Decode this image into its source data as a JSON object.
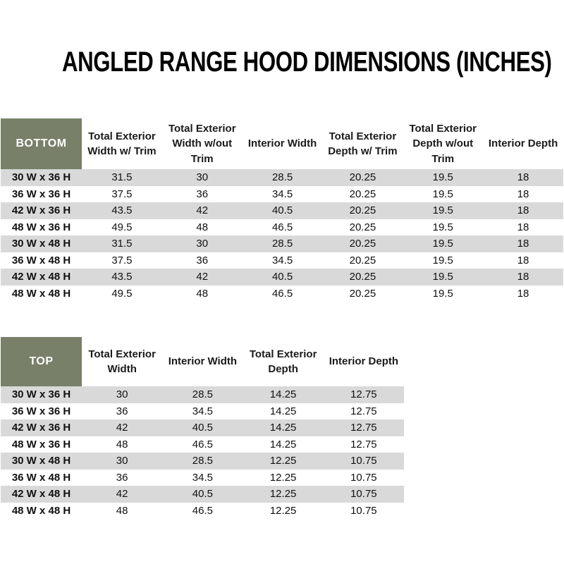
{
  "title": "ANGLED RANGE HOOD DIMENSIONS (INCHES)",
  "colors": {
    "corner_cell_green": "#78806a",
    "striped_row_gray": "#d9d9d9",
    "text_black": "#111111",
    "corner_text_white": "#ffffff"
  },
  "tables": [
    {
      "name": "bottom",
      "corner_label": "BOTTOM",
      "columns": [
        "Total Exterior Width w/ Trim",
        "Total Exterior Width w/out Trim",
        "Interior Width",
        "Total Exterior Depth w/ Trim",
        "Total Exterior Depth w/out Trim",
        "Interior Depth"
      ],
      "rows": [
        {
          "label": "30 W x 36 H",
          "values": [
            "31.5",
            "30",
            "28.5",
            "20.25",
            "19.5",
            "18"
          ]
        },
        {
          "label": "36 W x 36 H",
          "values": [
            "37.5",
            "36",
            "34.5",
            "20.25",
            "19.5",
            "18"
          ]
        },
        {
          "label": "42 W x 36 H",
          "values": [
            "43.5",
            "42",
            "40.5",
            "20.25",
            "19.5",
            "18"
          ]
        },
        {
          "label": "48 W x 36 H",
          "values": [
            "49.5",
            "48",
            "46.5",
            "20.25",
            "19.5",
            "18"
          ]
        },
        {
          "label": "30 W x 48 H",
          "values": [
            "31.5",
            "30",
            "28.5",
            "20.25",
            "19.5",
            "18"
          ]
        },
        {
          "label": "36 W x 48 H",
          "values": [
            "37.5",
            "36",
            "34.5",
            "20.25",
            "19.5",
            "18"
          ]
        },
        {
          "label": "42 W x 48 H",
          "values": [
            "43.5",
            "42",
            "40.5",
            "20.25",
            "19.5",
            "18"
          ]
        },
        {
          "label": "48 W x 48 H",
          "values": [
            "49.5",
            "48",
            "46.5",
            "20.25",
            "19.5",
            "18"
          ]
        }
      ]
    },
    {
      "name": "top",
      "corner_label": "TOP",
      "columns": [
        "Total Exterior Width",
        "Interior Width",
        "Total Exterior Depth",
        "Interior Depth"
      ],
      "rows": [
        {
          "label": "30 W x 36 H",
          "values": [
            "30",
            "28.5",
            "14.25",
            "12.75"
          ]
        },
        {
          "label": "36 W x 36 H",
          "values": [
            "36",
            "34.5",
            "14.25",
            "12.75"
          ]
        },
        {
          "label": "42 W x 36 H",
          "values": [
            "42",
            "40.5",
            "14.25",
            "12.75"
          ]
        },
        {
          "label": "48 W x 36 H",
          "values": [
            "48",
            "46.5",
            "14.25",
            "12.75"
          ]
        },
        {
          "label": "30 W x 48 H",
          "values": [
            "30",
            "28.5",
            "12.25",
            "10.75"
          ]
        },
        {
          "label": "36 W x 48 H",
          "values": [
            "36",
            "34.5",
            "12.25",
            "10.75"
          ]
        },
        {
          "label": "42 W x 48 H",
          "values": [
            "42",
            "40.5",
            "12.25",
            "10.75"
          ]
        },
        {
          "label": "48 W x 48 H",
          "values": [
            "48",
            "46.5",
            "12.25",
            "10.75"
          ]
        }
      ]
    }
  ]
}
